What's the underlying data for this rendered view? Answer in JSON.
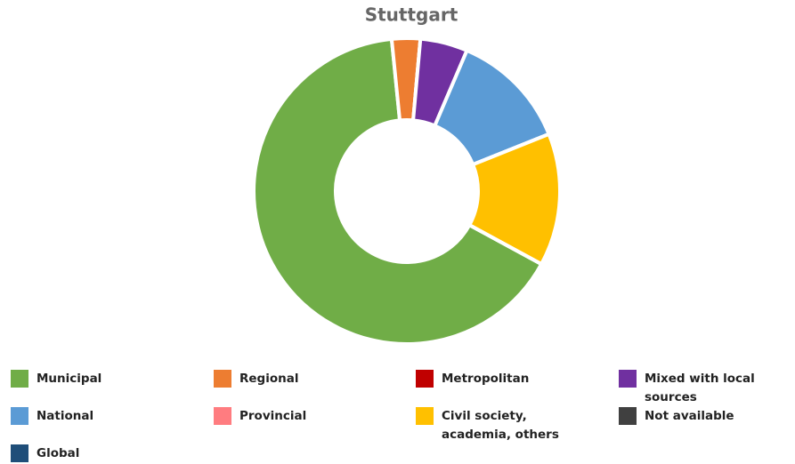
{
  "chart_data": {
    "type": "pie",
    "title": "Stuttgart",
    "categories": [
      "Municipal",
      "Regional",
      "Metropolitan",
      "Mixed with local sources",
      "National",
      "Provincial",
      "Civil society, academia, others",
      "Not available",
      "Global"
    ],
    "values": [
      65.5,
      3,
      0,
      5,
      12.5,
      0,
      14,
      0,
      0
    ],
    "colors": [
      "#70ad47",
      "#ed7d31",
      "#c00000",
      "#7030a0",
      "#5b9bd5",
      "#ff7c80",
      "#ffc000",
      "#404040",
      "#1f4e79"
    ],
    "legend": "bottom"
  }
}
